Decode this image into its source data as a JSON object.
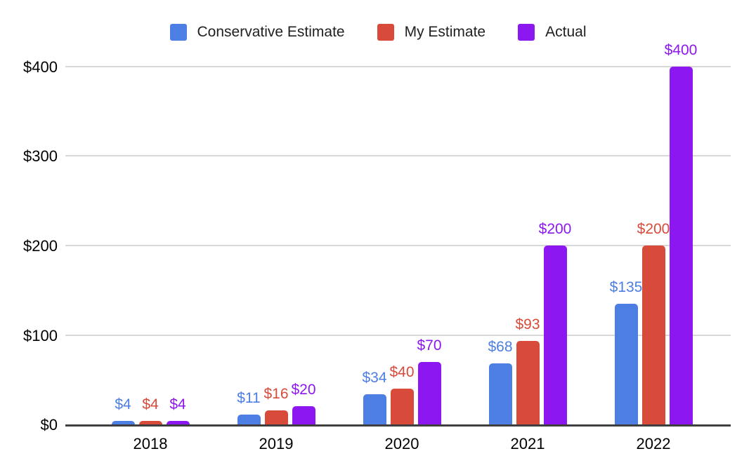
{
  "chart_data": {
    "type": "bar",
    "title": "",
    "xlabel": "",
    "ylabel": "",
    "categories": [
      "2018",
      "2019",
      "2020",
      "2021",
      "2022"
    ],
    "series": [
      {
        "name": "Conservative Estimate",
        "color": "#4d7ee3",
        "values": [
          4,
          11,
          34,
          68,
          135
        ],
        "labels": [
          "$4",
          "$11",
          "$34",
          "$68",
          "$135"
        ]
      },
      {
        "name": "My Estimate",
        "color": "#d84b3a",
        "values": [
          4,
          16,
          40,
          93,
          200
        ],
        "labels": [
          "$4",
          "$16",
          "$40",
          "$93",
          "$200"
        ]
      },
      {
        "name": "Actual",
        "color": "#8c17f0",
        "values": [
          4,
          20,
          70,
          200,
          400
        ],
        "labels": [
          "$4",
          "$20",
          "$70",
          "$200",
          "$400"
        ]
      }
    ],
    "y_ticks": [
      "$0",
      "$100",
      "$200",
      "$300",
      "$400"
    ],
    "y_tick_values": [
      0,
      100,
      200,
      300,
      400
    ],
    "ylim": [
      0,
      400
    ],
    "grid": true,
    "legend_position": "top",
    "colors": {
      "background": "#ffffff",
      "gridline": "#d8d8d8",
      "axis_line": "#3f3f3f",
      "text": "#000000"
    }
  }
}
